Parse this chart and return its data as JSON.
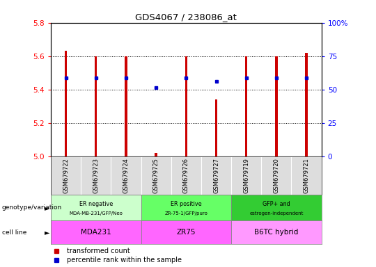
{
  "title": "GDS4067 / 238086_at",
  "samples": [
    "GSM679722",
    "GSM679723",
    "GSM679724",
    "GSM679725",
    "GSM679726",
    "GSM679727",
    "GSM679719",
    "GSM679720",
    "GSM679721"
  ],
  "bar_values": [
    5.63,
    5.6,
    5.6,
    5.02,
    5.6,
    5.34,
    5.6,
    5.6,
    5.62
  ],
  "percentile_values": [
    5.47,
    5.47,
    5.47,
    5.41,
    5.47,
    5.45,
    5.47,
    5.47,
    5.47
  ],
  "ylim_left": [
    5.0,
    5.8
  ],
  "ylim_right": [
    0,
    100
  ],
  "yticks_left": [
    5.0,
    5.2,
    5.4,
    5.6,
    5.8
  ],
  "yticks_right": [
    0,
    25,
    50,
    75,
    100
  ],
  "bar_color": "#cc0000",
  "percentile_color": "#0000cc",
  "genotype_groups": [
    {
      "label1": "ER negative",
      "label2": "MDA-MB-231/GFP/Neo",
      "start": 0,
      "end": 3,
      "color": "#ccffcc"
    },
    {
      "label1": "ER positive",
      "label2": "ZR-75-1/GFP/puro",
      "start": 3,
      "end": 6,
      "color": "#66ff66"
    },
    {
      "label1": "GFP+ and",
      "label2": "estrogen-independent",
      "start": 6,
      "end": 9,
      "color": "#33cc33"
    }
  ],
  "cell_line_groups": [
    {
      "label": "MDA231",
      "start": 0,
      "end": 3,
      "color": "#ff66ff"
    },
    {
      "label": "ZR75",
      "start": 3,
      "end": 6,
      "color": "#ff66ff"
    },
    {
      "label": "B6TC hybrid",
      "start": 6,
      "end": 9,
      "color": "#ff99ff"
    }
  ],
  "genotype_label": "genotype/variation",
  "cell_line_label": "cell line",
  "legend_items": [
    "transformed count",
    "percentile rank within the sample"
  ],
  "background_color": "#ffffff",
  "bar_width": 0.08
}
